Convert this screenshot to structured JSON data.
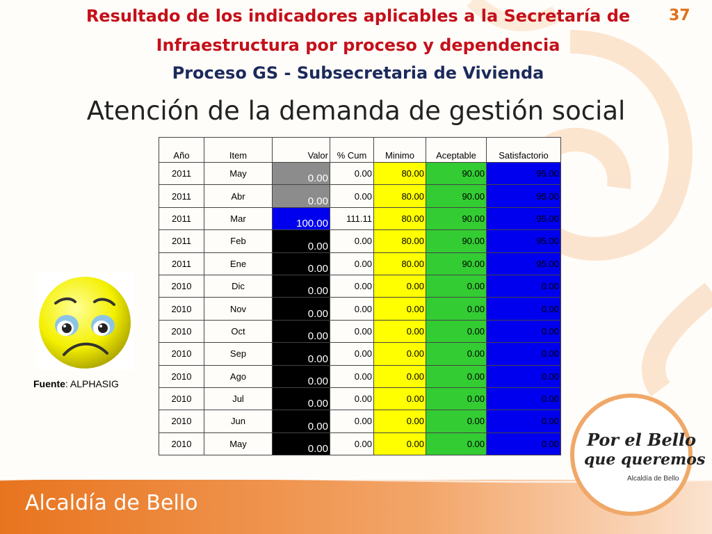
{
  "header": {
    "title_line1": "Resultado de los indicadores aplicables a la Secretaría de",
    "title_line2": "Infraestructura por proceso y dependencia",
    "title_line3": "Proceso GS - Subsecretaria de Vivienda",
    "page_number": "37"
  },
  "subtitle": "Atención de la demanda de gestión social",
  "table": {
    "headers": [
      "Año",
      "Item",
      "Valor",
      "% Cum",
      "Minimo",
      "Aceptable",
      "Satisfactorio"
    ],
    "rows": [
      {
        "ano": "2011",
        "item": "May",
        "valor": "0.00",
        "cum": "0.00",
        "minimo": "80.00",
        "aceptable": "90.00",
        "satisfactorio": "95.00",
        "valor_color": "gray"
      },
      {
        "ano": "2011",
        "item": "Abr",
        "valor": "0.00",
        "cum": "0.00",
        "minimo": "80.00",
        "aceptable": "90.00",
        "satisfactorio": "95.00",
        "valor_color": "gray"
      },
      {
        "ano": "2011",
        "item": "Mar",
        "valor": "100.00",
        "cum": "111.11",
        "minimo": "80.00",
        "aceptable": "90.00",
        "satisfactorio": "95.00",
        "valor_color": "blue"
      },
      {
        "ano": "2011",
        "item": "Feb",
        "valor": "0.00",
        "cum": "0.00",
        "minimo": "80.00",
        "aceptable": "90.00",
        "satisfactorio": "95.00",
        "valor_color": "black"
      },
      {
        "ano": "2011",
        "item": "Ene",
        "valor": "0.00",
        "cum": "0.00",
        "minimo": "80.00",
        "aceptable": "90.00",
        "satisfactorio": "95.00",
        "valor_color": "black"
      },
      {
        "ano": "2010",
        "item": "Dic",
        "valor": "0.00",
        "cum": "0.00",
        "minimo": "0.00",
        "aceptable": "0.00",
        "satisfactorio": "0.00",
        "valor_color": "black"
      },
      {
        "ano": "2010",
        "item": "Nov",
        "valor": "0.00",
        "cum": "0.00",
        "minimo": "0.00",
        "aceptable": "0.00",
        "satisfactorio": "0.00",
        "valor_color": "black"
      },
      {
        "ano": "2010",
        "item": "Oct",
        "valor": "0.00",
        "cum": "0.00",
        "minimo": "0.00",
        "aceptable": "0.00",
        "satisfactorio": "0.00",
        "valor_color": "black"
      },
      {
        "ano": "2010",
        "item": "Sep",
        "valor": "0.00",
        "cum": "0.00",
        "minimo": "0.00",
        "aceptable": "0.00",
        "satisfactorio": "0.00",
        "valor_color": "black"
      },
      {
        "ano": "2010",
        "item": "Ago",
        "valor": "0.00",
        "cum": "0.00",
        "minimo": "0.00",
        "aceptable": "0.00",
        "satisfactorio": "0.00",
        "valor_color": "black"
      },
      {
        "ano": "2010",
        "item": "Jul",
        "valor": "0.00",
        "cum": "0.00",
        "minimo": "0.00",
        "aceptable": "0.00",
        "satisfactorio": "0.00",
        "valor_color": "black"
      },
      {
        "ano": "2010",
        "item": "Jun",
        "valor": "0.00",
        "cum": "0.00",
        "minimo": "0.00",
        "aceptable": "0.00",
        "satisfactorio": "0.00",
        "valor_color": "black"
      },
      {
        "ano": "2010",
        "item": "May",
        "valor": "0.00",
        "cum": "0.00",
        "minimo": "0.00",
        "aceptable": "0.00",
        "satisfactorio": "0.00",
        "valor_color": "black"
      }
    ]
  },
  "source": {
    "label": "Fuente",
    "value": ": ALPHASIG"
  },
  "logo": {
    "line1": "Por el Bello",
    "line2": "que queremos",
    "small": "Alcaldía de Bello"
  },
  "footer": {
    "text": "Alcaldía de Bello"
  },
  "colors": {
    "title_red": "#c4101a",
    "title_navy": "#1c2a5c",
    "accent_orange": "#e8741e",
    "minimo": "#ffff00",
    "aceptable": "#33cc33",
    "satisfactorio": "#0000ee"
  },
  "icons": {
    "status": "sad-face-icon"
  }
}
